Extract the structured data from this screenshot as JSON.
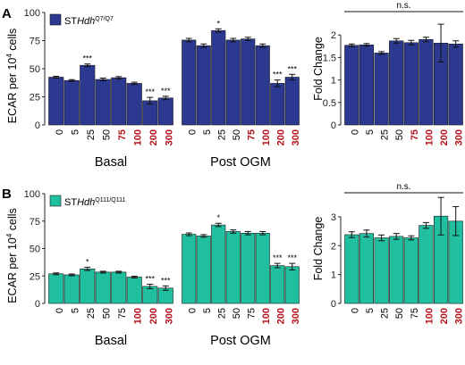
{
  "panels": [
    {
      "letter": "A",
      "legend": {
        "prefix": "ST",
        "gene": "Hdh",
        "superscript": "Q7/Q7"
      },
      "colors": {
        "bar": "#2b3990",
        "highlight": "#b5121b",
        "text": "#000000"
      },
      "ylabel": "ECAR per 10",
      "ylabel_sup": "4",
      "ylabel_tail": " cells",
      "ns_label": "n.s."
    },
    {
      "letter": "B",
      "legend": {
        "prefix": "ST",
        "gene": "Hdh",
        "superscript": "Q111/Q111"
      },
      "colors": {
        "bar": "#1fbfa0",
        "highlight": "#b5121b",
        "text": "#000000"
      },
      "ylabel": "ECAR per 10",
      "ylabel_sup": "4",
      "ylabel_tail": " cells",
      "ns_label": "n.s."
    }
  ],
  "chart_data": [
    {
      "type": "bar",
      "panel": "A",
      "group": "Basal",
      "categories": [
        "0",
        "5",
        "25",
        "50",
        "75",
        "100",
        "200",
        "300"
      ],
      "highlight_categories": [
        "75",
        "100",
        "200",
        "300"
      ],
      "values": [
        42.5,
        39.5,
        53,
        40.5,
        42,
        37,
        21.5,
        24
      ],
      "errors": [
        0.8,
        0.8,
        1.2,
        1.2,
        1,
        1,
        3,
        1.5
      ],
      "significance": [
        "",
        "",
        "***",
        "",
        "",
        "",
        "***",
        "***"
      ],
      "xlabel": "Basal",
      "ylabel": "ECAR per 10^4 cells",
      "ylim": [
        0,
        100
      ],
      "yticks": [
        0,
        25,
        50,
        75,
        100
      ]
    },
    {
      "type": "bar",
      "panel": "A",
      "group": "Post OGM",
      "categories": [
        "0",
        "5",
        "25",
        "50",
        "75",
        "100",
        "200",
        "300"
      ],
      "highlight_categories": [
        "75",
        "100",
        "200",
        "300"
      ],
      "values": [
        75.5,
        70.5,
        84,
        75.5,
        76.5,
        70.5,
        37,
        42.5
      ],
      "errors": [
        1.5,
        1.5,
        1.5,
        1.5,
        1.5,
        1.5,
        3,
        2.5
      ],
      "significance": [
        "",
        "",
        "*",
        "",
        "",
        "",
        "***",
        "***"
      ],
      "xlabel": "Post OGM",
      "ylim": [
        0,
        100
      ]
    },
    {
      "type": "bar",
      "panel": "A",
      "group": "Fold Change",
      "categories": [
        "0",
        "5",
        "25",
        "50",
        "75",
        "100",
        "200",
        "300"
      ],
      "highlight_categories": [
        "75",
        "100",
        "200",
        "300"
      ],
      "values": [
        1.77,
        1.78,
        1.6,
        1.87,
        1.83,
        1.9,
        1.82,
        1.8
      ],
      "errors": [
        0.03,
        0.03,
        0.03,
        0.05,
        0.05,
        0.05,
        0.42,
        0.07
      ],
      "significance": [
        "",
        "",
        "",
        "",
        "",
        "",
        "",
        ""
      ],
      "ylabel": "Fold Change",
      "annotation": "n.s.",
      "ylim": [
        0,
        2.5
      ],
      "yticks": [
        0,
        0.5,
        1,
        1.5,
        2
      ]
    },
    {
      "type": "bar",
      "panel": "B",
      "group": "Basal",
      "categories": [
        "0",
        "5",
        "25",
        "50",
        "75",
        "100",
        "200",
        "300"
      ],
      "highlight_categories": [
        "100",
        "200",
        "300"
      ],
      "values": [
        27,
        26,
        31.5,
        28.5,
        28.5,
        24,
        15.5,
        14
      ],
      "errors": [
        0.8,
        0.8,
        1.5,
        0.8,
        0.8,
        0.8,
        2,
        2
      ],
      "significance": [
        "",
        "",
        "*",
        "",
        "",
        "",
        "***",
        "***"
      ],
      "xlabel": "Basal",
      "ylabel": "ECAR per 10^4 cells",
      "ylim": [
        0,
        100
      ],
      "yticks": [
        0,
        25,
        50,
        75,
        100
      ]
    },
    {
      "type": "bar",
      "panel": "B",
      "group": "Post OGM",
      "categories": [
        "0",
        "5",
        "25",
        "50",
        "75",
        "100",
        "200",
        "300"
      ],
      "highlight_categories": [
        "100",
        "200",
        "300"
      ],
      "values": [
        63,
        61.5,
        71.5,
        65.5,
        64,
        64,
        34.5,
        33.5
      ],
      "errors": [
        1.2,
        1.2,
        1.5,
        1.5,
        1.5,
        1.5,
        2,
        3
      ],
      "significance": [
        "",
        "",
        "*",
        "",
        "",
        "",
        "***",
        "***"
      ],
      "xlabel": "Post OGM",
      "ylim": [
        0,
        100
      ]
    },
    {
      "type": "bar",
      "panel": "B",
      "group": "Fold Change",
      "categories": [
        "0",
        "5",
        "25",
        "50",
        "75",
        "100",
        "200",
        "300"
      ],
      "highlight_categories": [
        "100",
        "200",
        "300"
      ],
      "values": [
        2.38,
        2.42,
        2.27,
        2.32,
        2.27,
        2.7,
        3.02,
        2.85
      ],
      "errors": [
        0.1,
        0.12,
        0.1,
        0.1,
        0.07,
        0.1,
        0.65,
        0.5
      ],
      "significance": [
        "",
        "",
        "",
        "",
        "",
        "",
        "",
        ""
      ],
      "ylabel": "Fold Change",
      "annotation": "n.s.",
      "ylim": [
        0,
        3.8
      ],
      "yticks": [
        0,
        1,
        2,
        3
      ]
    }
  ]
}
